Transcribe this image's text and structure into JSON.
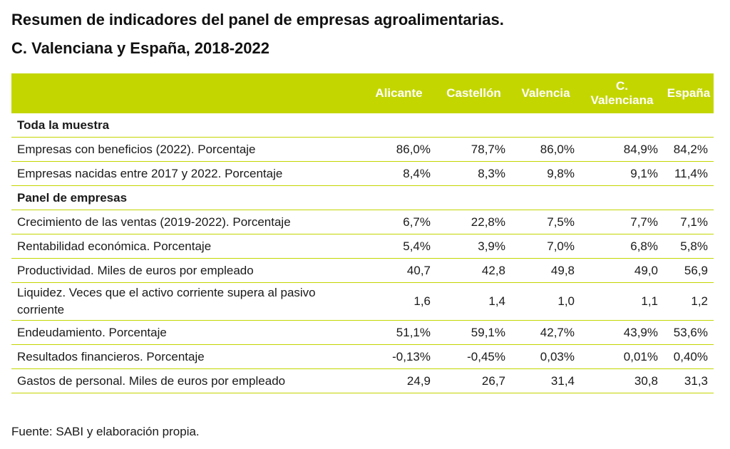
{
  "title": {
    "line1": "Resumen de indicadores del panel de empresas agroalimentarias.",
    "line2": "C. Valenciana y España, 2018-2022"
  },
  "header": {
    "columns": [
      "Alicante",
      "Castellón",
      "Valencia",
      "C. Valenciana",
      "España"
    ]
  },
  "sections": [
    {
      "label": "Toda la muestra",
      "rows": [
        {
          "label": "Empresas con beneficios (2022). Porcentaje",
          "values": [
            "86,0%",
            "78,7%",
            "86,0%",
            "84,9%",
            "84,2%"
          ]
        },
        {
          "label": "Empresas nacidas entre 2017 y 2022. Porcentaje",
          "values": [
            "8,4%",
            "8,3%",
            "9,8%",
            "9,1%",
            "11,4%"
          ]
        }
      ]
    },
    {
      "label": "Panel de empresas",
      "rows": [
        {
          "label": "Crecimiento de las ventas (2019-2022). Porcentaje",
          "values": [
            "6,7%",
            "22,8%",
            "7,5%",
            "7,7%",
            "7,1%"
          ]
        },
        {
          "label": "Rentabilidad económica. Porcentaje",
          "values": [
            "5,4%",
            "3,9%",
            "7,0%",
            "6,8%",
            "5,8%"
          ]
        },
        {
          "label": "Productividad. Miles de euros por empleado",
          "values": [
            "40,7",
            "42,8",
            "49,8",
            "49,0",
            "56,9"
          ]
        },
        {
          "label": "Liquidez. Veces que el activo corriente supera al pasivo corriente",
          "values": [
            "1,6",
            "1,4",
            "1,0",
            "1,1",
            "1,2"
          ]
        },
        {
          "label": "Endeudamiento. Porcentaje",
          "values": [
            "51,1%",
            "59,1%",
            "42,7%",
            "43,9%",
            "53,6%"
          ]
        },
        {
          "label": "Resultados financieros. Porcentaje",
          "values": [
            "-0,13%",
            "-0,45%",
            "0,03%",
            "0,01%",
            "0,40%"
          ]
        },
        {
          "label": "Gastos de personal. Miles de euros por empleado",
          "values": [
            "24,9",
            "26,7",
            "31,4",
            "30,8",
            "31,3"
          ]
        }
      ]
    }
  ],
  "source": "Fuente: SABI y elaboración propia.",
  "colors": {
    "accent": "#c3d600",
    "header_text": "#ffffff"
  }
}
